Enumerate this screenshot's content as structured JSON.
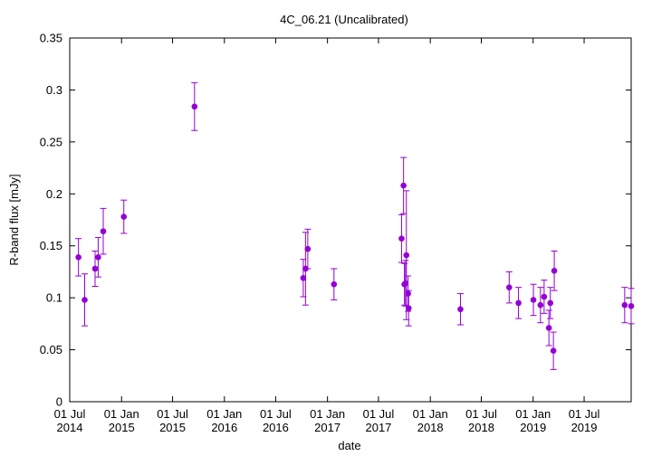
{
  "chart_data": {
    "type": "scatter",
    "title": "4C_06.21 (Uncalibrated)",
    "xlabel": "date",
    "ylabel": "R-band flux [mJy]",
    "xlim": [
      "2014-07-01",
      "2019-12-15"
    ],
    "ylim": [
      0,
      0.35
    ],
    "grid": false,
    "legend": "none",
    "colors": {
      "points": "#9400d3",
      "axes": "#000000"
    },
    "y_ticks": [
      {
        "value": 0,
        "label": "0"
      },
      {
        "value": 0.05,
        "label": "0.05"
      },
      {
        "value": 0.1,
        "label": "0.1"
      },
      {
        "value": 0.15,
        "label": "0.15"
      },
      {
        "value": 0.2,
        "label": "0.2"
      },
      {
        "value": 0.25,
        "label": "0.25"
      },
      {
        "value": 0.3,
        "label": "0.3"
      },
      {
        "value": 0.35,
        "label": "0.35"
      }
    ],
    "x_ticks": [
      {
        "date": "2014-07-01",
        "label1": "01 Jul",
        "label2": "2014"
      },
      {
        "date": "2015-01-01",
        "label1": "01 Jan",
        "label2": "2015"
      },
      {
        "date": "2015-07-01",
        "label1": "01 Jul",
        "label2": "2015"
      },
      {
        "date": "2016-01-01",
        "label1": "01 Jan",
        "label2": "2016"
      },
      {
        "date": "2016-07-01",
        "label1": "01 Jul",
        "label2": "2016"
      },
      {
        "date": "2017-01-01",
        "label1": "01 Jan",
        "label2": "2017"
      },
      {
        "date": "2017-07-01",
        "label1": "01 Jul",
        "label2": "2017"
      },
      {
        "date": "2018-01-01",
        "label1": "01 Jan",
        "label2": "2018"
      },
      {
        "date": "2018-07-01",
        "label1": "01 Jul",
        "label2": "2018"
      },
      {
        "date": "2019-01-01",
        "label1": "01 Jan",
        "label2": "2019"
      },
      {
        "date": "2019-07-01",
        "label1": "01 Jul",
        "label2": "2019"
      }
    ],
    "points": [
      {
        "x": "2014-08-01",
        "y": 0.139,
        "err": 0.018
      },
      {
        "x": "2014-08-23",
        "y": 0.098,
        "err": 0.025
      },
      {
        "x": "2014-09-29",
        "y": 0.128,
        "err": 0.017
      },
      {
        "x": "2014-10-10",
        "y": 0.139,
        "err": 0.019
      },
      {
        "x": "2014-10-28",
        "y": 0.164,
        "err": 0.022
      },
      {
        "x": "2015-01-09",
        "y": 0.178,
        "err": 0.016
      },
      {
        "x": "2015-09-17",
        "y": 0.284,
        "err": 0.023
      },
      {
        "x": "2016-10-07",
        "y": 0.119,
        "err": 0.018
      },
      {
        "x": "2016-10-15",
        "y": 0.128,
        "err": 0.035
      },
      {
        "x": "2016-10-23",
        "y": 0.147,
        "err": 0.019
      },
      {
        "x": "2017-01-24",
        "y": 0.113,
        "err": 0.015
      },
      {
        "x": "2017-09-21",
        "y": 0.157,
        "err": 0.023
      },
      {
        "x": "2017-09-28",
        "y": 0.208,
        "err": 0.027
      },
      {
        "x": "2017-10-01",
        "y": 0.113,
        "err": 0.02
      },
      {
        "x": "2017-10-05",
        "y": 0.114,
        "err": 0.022
      },
      {
        "x": "2017-10-08",
        "y": 0.141,
        "err": 0.062
      },
      {
        "x": "2017-10-14",
        "y": 0.104,
        "err": 0.017
      },
      {
        "x": "2017-10-16",
        "y": 0.09,
        "err": 0.017
      },
      {
        "x": "2018-04-18",
        "y": 0.089,
        "err": 0.015
      },
      {
        "x": "2018-10-08",
        "y": 0.11,
        "err": 0.015
      },
      {
        "x": "2018-11-10",
        "y": 0.095,
        "err": 0.015
      },
      {
        "x": "2019-01-02",
        "y": 0.098,
        "err": 0.015
      },
      {
        "x": "2019-01-27",
        "y": 0.093,
        "err": 0.017
      },
      {
        "x": "2019-02-09",
        "y": 0.101,
        "err": 0.016
      },
      {
        "x": "2019-02-26",
        "y": 0.071,
        "err": 0.017
      },
      {
        "x": "2019-03-03",
        "y": 0.095,
        "err": 0.015
      },
      {
        "x": "2019-03-14",
        "y": 0.049,
        "err": 0.018
      },
      {
        "x": "2019-03-17",
        "y": 0.126,
        "err": 0.019
      },
      {
        "x": "2019-11-22",
        "y": 0.093,
        "err": 0.017
      },
      {
        "x": "2019-12-15",
        "y": 0.092,
        "err": 0.017
      }
    ]
  }
}
